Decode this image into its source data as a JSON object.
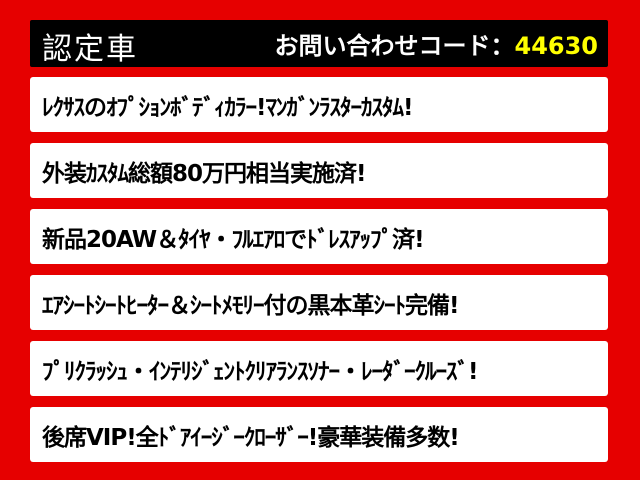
{
  "header": {
    "title": "認定車",
    "code_label": "お問い合わせコード：",
    "code_value": "44630"
  },
  "features": [
    "ﾚｸｻｽのｵﾌﾟｼｮﾝﾎﾞﾃﾞｨｶﾗｰ!ﾏﾝｶﾞﾝﾗｽﾀｰｶｽﾀﾑ!",
    "外装ｶｽﾀﾑ総額80万円相当実施済!",
    "新品20AW＆ﾀｲﾔ・ﾌﾙｴｱﾛでﾄﾞﾚｽｱｯﾌﾟ済!",
    "ｴｱｼｰﾄｼｰﾄﾋｰﾀｰ＆ｼｰﾄﾒﾓﾘｰ付の黒本革ｼｰﾄ完備!",
    "ﾌﾟﾘｸﾗｯｼｭ・ｲﾝﾃﾘｼﾞｪﾝﾄｸﾘｱﾗﾝｽｿﾅｰ・ﾚｰﾀﾞｰｸﾙｰｽﾞ!",
    "後席VIP!全ﾄﾞｱｲｰｼﾞｰｸﾛｰｻﾞｰ!豪華装備多数!"
  ],
  "colors": {
    "background": "#e60000",
    "header": "#000000",
    "code_value": "#ffff00"
  }
}
